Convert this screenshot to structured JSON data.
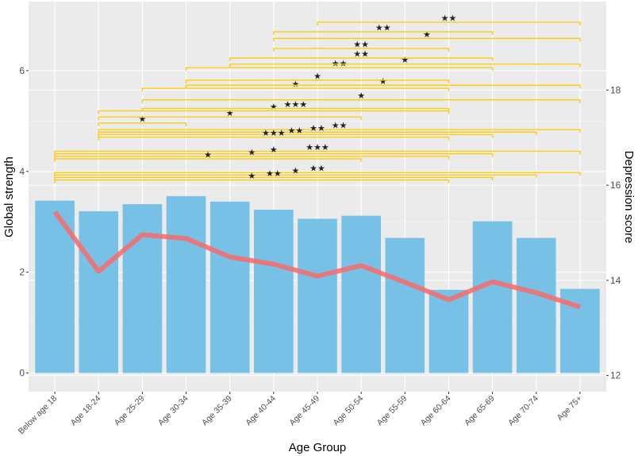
{
  "chart_data": {
    "type": "bar",
    "title": "",
    "xlabel": "Age Group",
    "ylabel": "Global strength",
    "y2label": "Depression score",
    "categories": [
      "Below age 18",
      "Age 18-24",
      "Age 25-29",
      "Age 30-34",
      "Age 35-39",
      "Age 40-44",
      "Age 45-49",
      "Age 50-54",
      "Age 55-59",
      "Age 60-64",
      "Age 65-69",
      "Age 70-74",
      "Age 75+"
    ],
    "ylim": [
      -0.37,
      7.37
    ],
    "yticks": [
      0,
      2,
      4,
      6
    ],
    "y2lim": [
      11.66,
      19.86
    ],
    "y2ticks": [
      12,
      14,
      16,
      18
    ],
    "grid": true,
    "series": [
      {
        "name": "Global strength",
        "type": "bar",
        "axis": "left",
        "color": "#78C1E6",
        "values": [
          3.42,
          3.21,
          3.35,
          3.51,
          3.4,
          3.24,
          3.06,
          3.12,
          2.68,
          1.65,
          3.01,
          2.68,
          1.67
        ]
      },
      {
        "name": "Depression score",
        "type": "line",
        "axis": "right",
        "color": "#F86A6A",
        "values": [
          15.44,
          14.19,
          14.96,
          14.88,
          14.49,
          14.34,
          14.09,
          14.31,
          13.96,
          13.59,
          13.97,
          13.74,
          13.44
        ]
      }
    ],
    "bracket_color": "#FFCC00",
    "significance_brackets": [
      {
        "from": 0,
        "to": 12,
        "y": 3.98,
        "label": "**"
      },
      {
        "from": 0,
        "to": 11,
        "y": 3.93,
        "label": "*"
      },
      {
        "from": 0,
        "to": 10,
        "y": 3.88,
        "label": "**"
      },
      {
        "from": 0,
        "to": 9,
        "y": 3.83,
        "label": "*"
      },
      {
        "from": 0,
        "to": 12,
        "y": 4.4,
        "label": "***"
      },
      {
        "from": 0,
        "to": 10,
        "y": 4.35,
        "label": "*"
      },
      {
        "from": 0,
        "to": 9,
        "y": 4.3,
        "label": "*"
      },
      {
        "from": 0,
        "to": 7,
        "y": 4.25,
        "label": "*"
      },
      {
        "from": 1,
        "to": 12,
        "y": 4.83,
        "label": "**"
      },
      {
        "from": 1,
        "to": 11,
        "y": 4.78,
        "label": "**"
      },
      {
        "from": 1,
        "to": 10,
        "y": 4.73,
        "label": "**"
      },
      {
        "from": 1,
        "to": 9,
        "y": 4.68,
        "label": "***"
      },
      {
        "from": 1,
        "to": 3,
        "y": 4.96,
        "label": "*"
      },
      {
        "from": 1,
        "to": 7,
        "y": 5.08,
        "label": "*"
      },
      {
        "from": 1,
        "to": 9,
        "y": 5.2,
        "label": "*"
      },
      {
        "from": 2,
        "to": 9,
        "y": 5.25,
        "label": "***"
      },
      {
        "from": 2,
        "to": 12,
        "y": 5.42,
        "label": "*"
      },
      {
        "from": 2,
        "to": 9,
        "y": 5.65,
        "label": "*"
      },
      {
        "from": 3,
        "to": 12,
        "y": 5.71,
        "label": "*"
      },
      {
        "from": 3,
        "to": 9,
        "y": 5.81,
        "label": "*"
      },
      {
        "from": 3,
        "to": 10,
        "y": 6.06,
        "label": "**"
      },
      {
        "from": 4,
        "to": 12,
        "y": 6.13,
        "label": "*"
      },
      {
        "from": 4,
        "to": 10,
        "y": 6.25,
        "label": "**"
      },
      {
        "from": 5,
        "to": 9,
        "y": 6.44,
        "label": "**"
      },
      {
        "from": 5,
        "to": 12,
        "y": 6.64,
        "label": "*"
      },
      {
        "from": 5,
        "to": 10,
        "y": 6.77,
        "label": "**"
      },
      {
        "from": 6,
        "to": 12,
        "y": 6.96,
        "label": "**"
      }
    ]
  }
}
